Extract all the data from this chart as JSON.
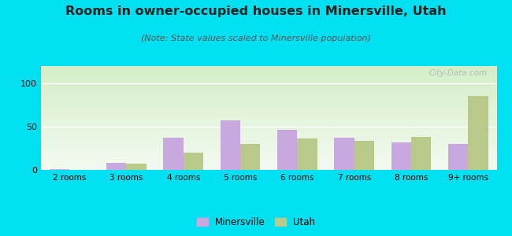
{
  "title": "Rooms in owner-occupied houses in Minersville, Utah",
  "subtitle": "(Note: State values scaled to Minersville population)",
  "categories": [
    "2 rooms",
    "3 rooms",
    "4 rooms",
    "5 rooms",
    "6 rooms",
    "7 rooms",
    "8 rooms",
    "9+ rooms"
  ],
  "minersville_values": [
    1,
    8,
    37,
    57,
    46,
    37,
    32,
    30
  ],
  "utah_values": [
    0,
    7,
    20,
    30,
    36,
    34,
    38,
    85
  ],
  "minersville_color": "#c9a8e0",
  "utah_color": "#b8c98a",
  "bg_outer": "#00e0f0",
  "bg_chart_top": "#f2faf0",
  "bg_chart_bottom": "#d4eec8",
  "ylim": [
    0,
    120
  ],
  "yticks": [
    0,
    50,
    100
  ],
  "bar_width": 0.35,
  "title_fontsize": 11.5,
  "subtitle_fontsize": 8,
  "watermark": "City-Data.com"
}
